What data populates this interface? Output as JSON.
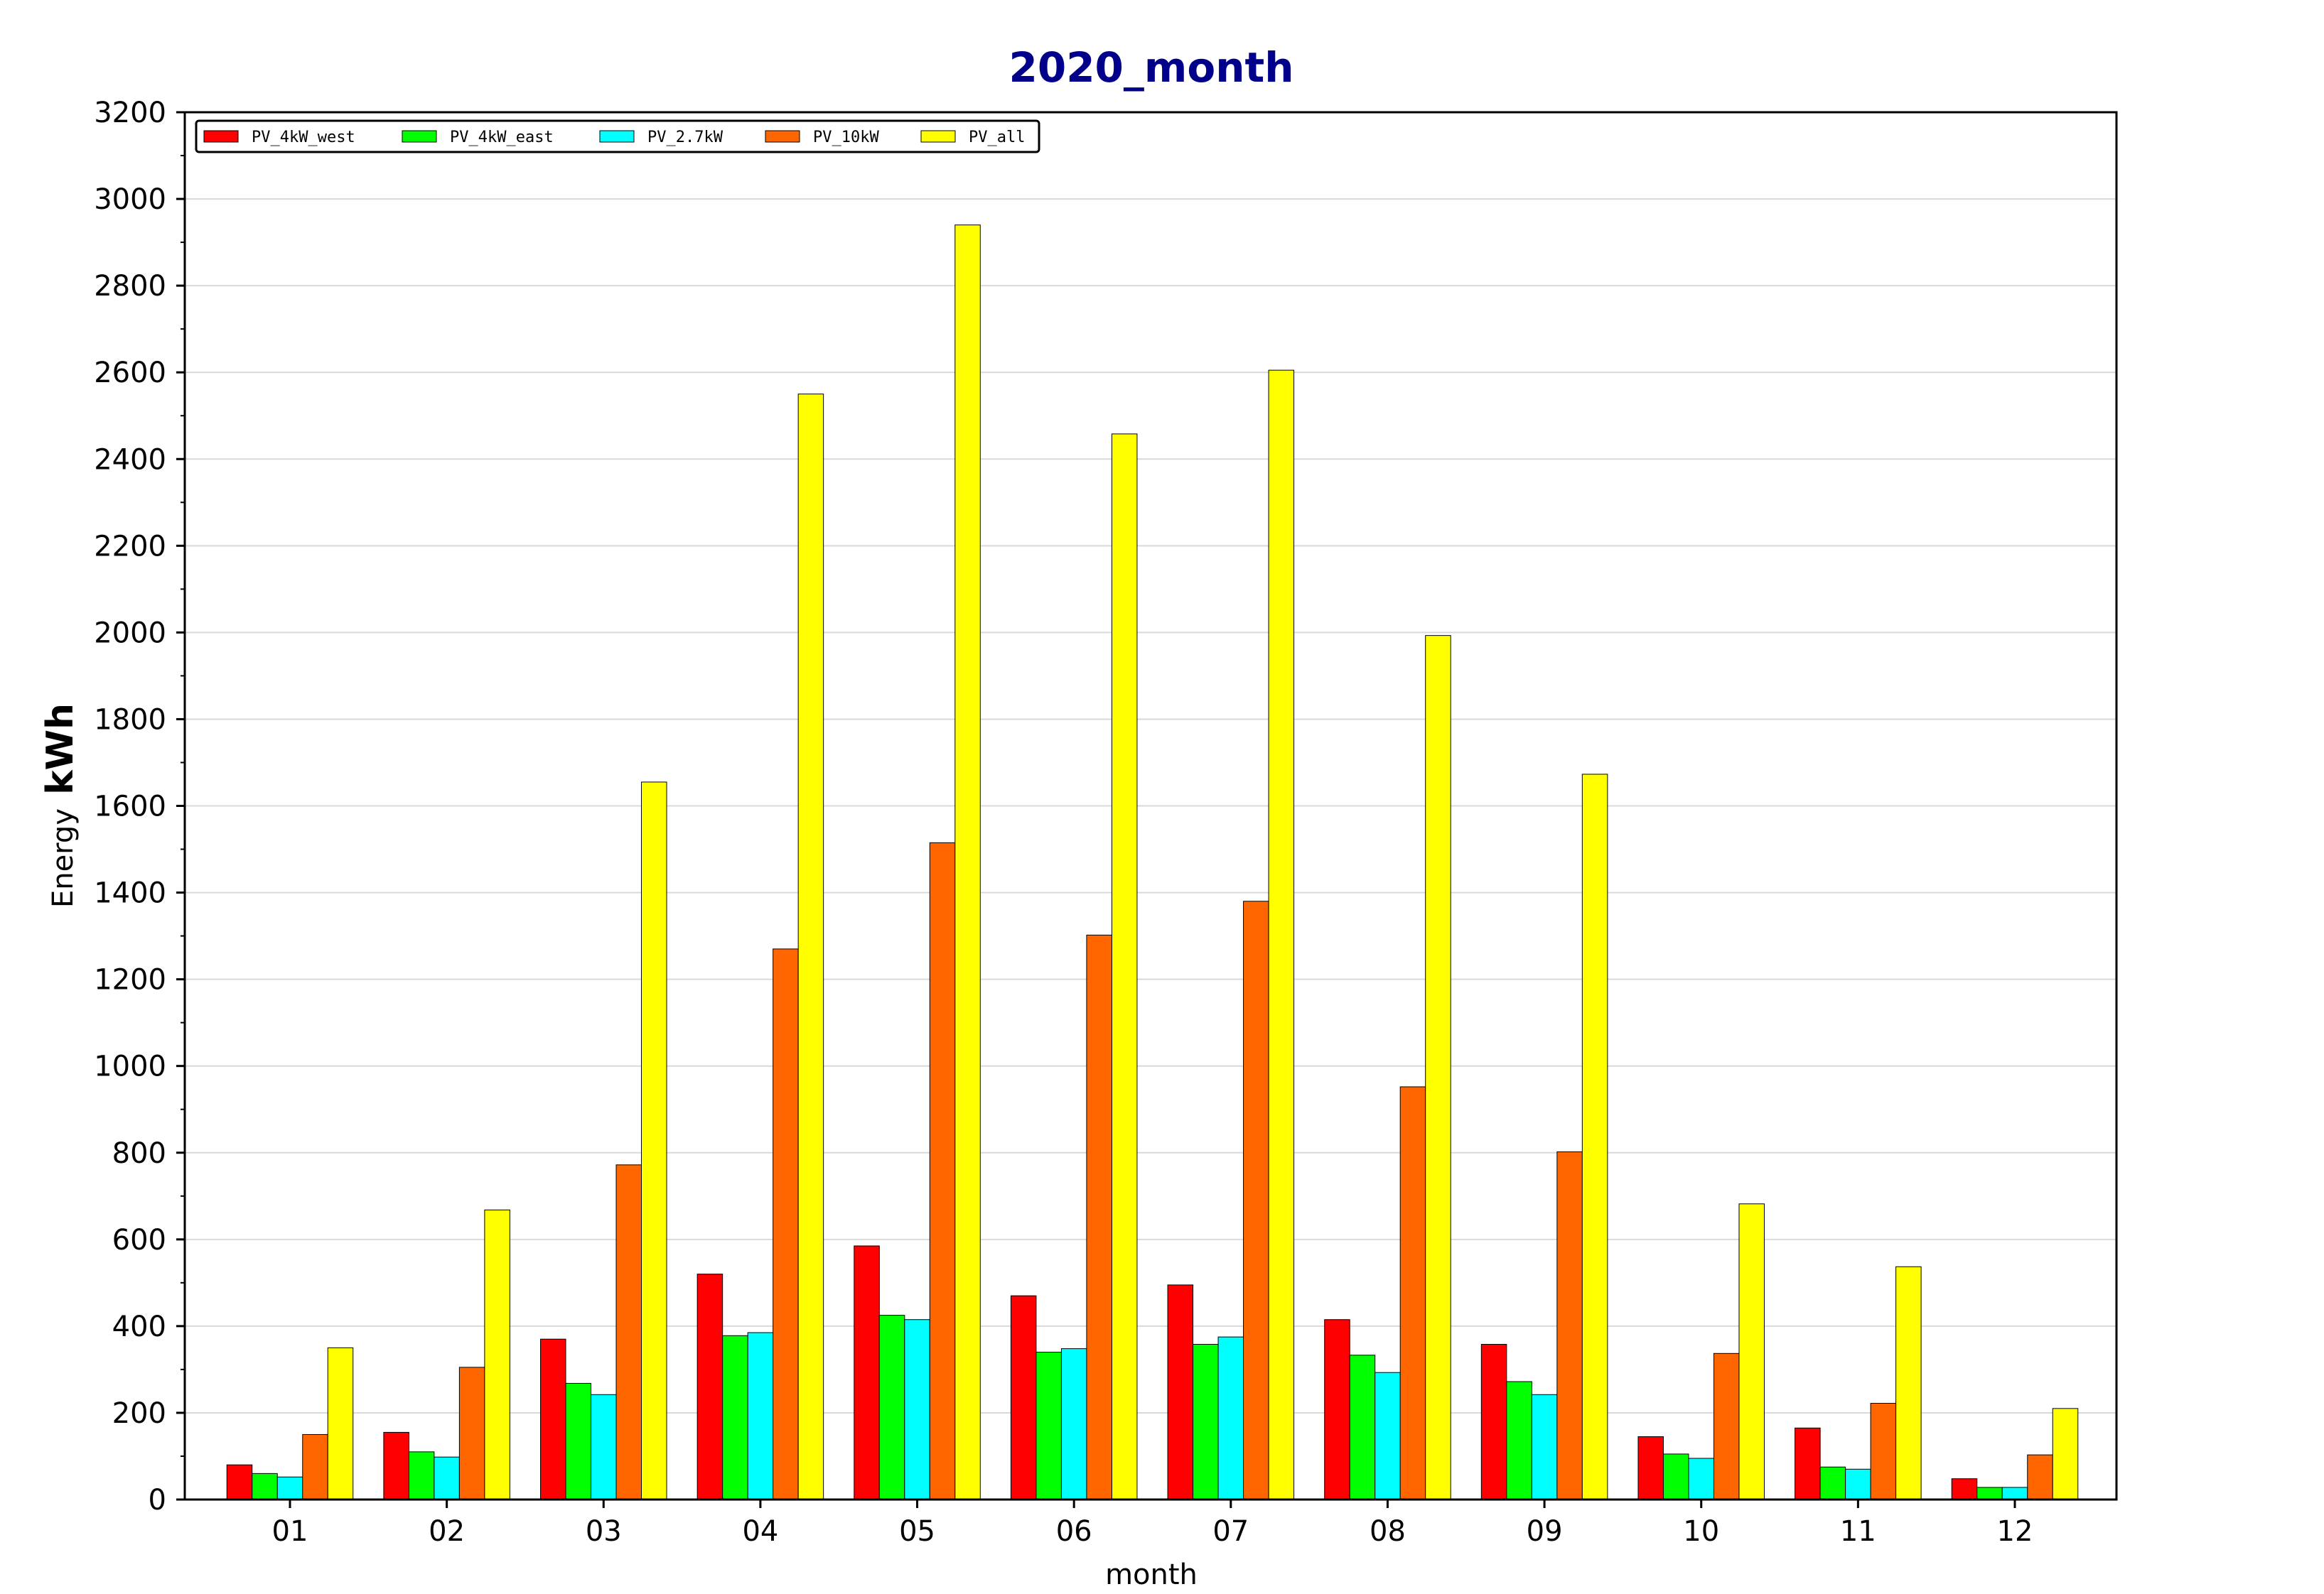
{
  "chart_data": {
    "type": "bar",
    "title": "2020_month",
    "xlabel": "month",
    "ylabel_prefix": "Energy",
    "ylabel_unit": "kWh",
    "categories": [
      "01",
      "02",
      "03",
      "04",
      "05",
      "06",
      "07",
      "08",
      "09",
      "10",
      "11",
      "12"
    ],
    "ylim": [
      0,
      3200
    ],
    "yticks": [
      0,
      200,
      400,
      600,
      800,
      1000,
      1200,
      1400,
      1600,
      1800,
      2000,
      2200,
      2400,
      2600,
      2800,
      3000,
      3200
    ],
    "grid": true,
    "legend_position": "top-left",
    "series": [
      {
        "name": "PV_4kW_west",
        "color": "#ff0000",
        "values": [
          80,
          155,
          370,
          520,
          585,
          470,
          495,
          415,
          358,
          145,
          165,
          48
        ]
      },
      {
        "name": "PV_4kW_east",
        "color": "#00ff00",
        "values": [
          60,
          110,
          268,
          378,
          425,
          340,
          358,
          333,
          272,
          105,
          75,
          28
        ]
      },
      {
        "name": "PV_2.7kW",
        "color": "#00ffff",
        "values": [
          52,
          98,
          242,
          385,
          415,
          348,
          375,
          293,
          242,
          95,
          70,
          28
        ]
      },
      {
        "name": "PV_10kW",
        "color": "#ff6600",
        "values": [
          150,
          305,
          772,
          1270,
          1515,
          1302,
          1380,
          952,
          802,
          337,
          222,
          103
        ]
      },
      {
        "name": "PV_all",
        "color": "#ffff00",
        "values": [
          350,
          668,
          1655,
          2550,
          2940,
          2458,
          2605,
          1993,
          1673,
          682,
          537,
          210
        ]
      }
    ]
  }
}
